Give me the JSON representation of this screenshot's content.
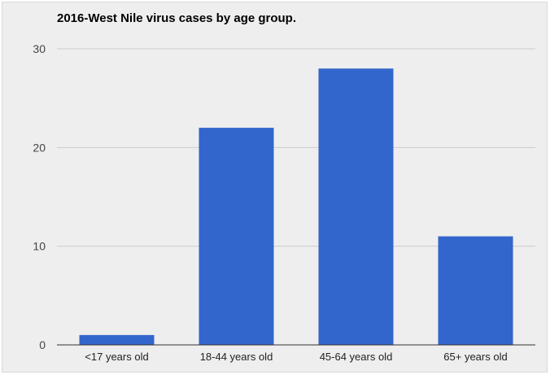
{
  "chart_data": {
    "type": "bar",
    "title": "2016-West Nile virus cases by age group.",
    "xlabel": "",
    "ylabel": "",
    "categories": [
      "<17 years old",
      "18-44 years old",
      "45-64 years old",
      "65+ years old"
    ],
    "values": [
      1,
      22,
      28,
      11
    ],
    "ylim": [
      0,
      30
    ],
    "yticks": [
      0,
      10,
      20,
      30
    ],
    "grid": true,
    "legend": "none",
    "bar_color": "#3366cc",
    "background_color": "#eeeeee"
  }
}
